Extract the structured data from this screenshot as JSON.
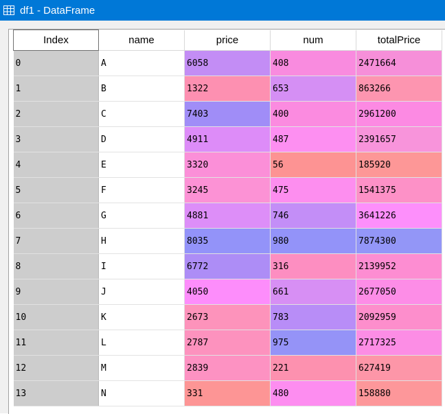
{
  "window": {
    "title": "df1 - DataFrame"
  },
  "table": {
    "columns": [
      "Index",
      "name",
      "price",
      "num",
      "totalPrice"
    ],
    "rows": [
      {
        "index": "0",
        "name": "A",
        "price": "6058",
        "num": "408",
        "totalPrice": "2471664",
        "colors": [
          "#c38df5",
          "#f98bdf",
          "#f68fd9"
        ]
      },
      {
        "index": "1",
        "name": "B",
        "price": "1322",
        "num": "653",
        "totalPrice": "863266",
        "colors": [
          "#fd90b1",
          "#d58ff4",
          "#fd95b0"
        ]
      },
      {
        "index": "2",
        "name": "C",
        "price": "7403",
        "num": "400",
        "totalPrice": "2961200",
        "colors": [
          "#a08df7",
          "#fb8be0",
          "#fc8ae3"
        ]
      },
      {
        "index": "3",
        "name": "D",
        "price": "4911",
        "num": "487",
        "totalPrice": "2391657",
        "colors": [
          "#dd8cf8",
          "#fd8ff1",
          "#f894db"
        ]
      },
      {
        "index": "4",
        "name": "E",
        "price": "3320",
        "num": "56",
        "totalPrice": "185920",
        "colors": [
          "#fb8fd8",
          "#fd9393",
          "#fd9797"
        ]
      },
      {
        "index": "5",
        "name": "F",
        "price": "3245",
        "num": "475",
        "totalPrice": "1541375",
        "colors": [
          "#fc92d5",
          "#fd8eef",
          "#fd91c7"
        ]
      },
      {
        "index": "6",
        "name": "G",
        "price": "4881",
        "num": "746",
        "totalPrice": "3641226",
        "colors": [
          "#dd8ef8",
          "#c38ef7",
          "#fd8ffb"
        ]
      },
      {
        "index": "7",
        "name": "H",
        "price": "8035",
        "num": "980",
        "totalPrice": "7874300",
        "colors": [
          "#9393f9",
          "#9393f9",
          "#9396f7"
        ]
      },
      {
        "index": "8",
        "name": "I",
        "price": "6772",
        "num": "316",
        "totalPrice": "2139952",
        "colors": [
          "#ad8df6",
          "#fd8ec1",
          "#fd8dd2"
        ]
      },
      {
        "index": "9",
        "name": "J",
        "price": "4050",
        "num": "661",
        "totalPrice": "2677050",
        "colors": [
          "#fd8dfb",
          "#d78ff4",
          "#fd8de7"
        ]
      },
      {
        "index": "10",
        "name": "K",
        "price": "2673",
        "num": "783",
        "totalPrice": "2092959",
        "colors": [
          "#fd93bb",
          "#b88df7",
          "#fd8ecc"
        ]
      },
      {
        "index": "11",
        "name": "L",
        "price": "2787",
        "num": "975",
        "totalPrice": "2717325",
        "colors": [
          "#fd92be",
          "#9593f7",
          "#fc8de5"
        ]
      },
      {
        "index": "12",
        "name": "M",
        "price": "2839",
        "num": "221",
        "totalPrice": "627419",
        "colors": [
          "#fd92c2",
          "#fd91af",
          "#fd96a8"
        ]
      },
      {
        "index": "13",
        "name": "N",
        "price": "331",
        "num": "480",
        "totalPrice": "158880",
        "colors": [
          "#fd9595",
          "#fd8df0",
          "#fd979a"
        ]
      }
    ]
  }
}
